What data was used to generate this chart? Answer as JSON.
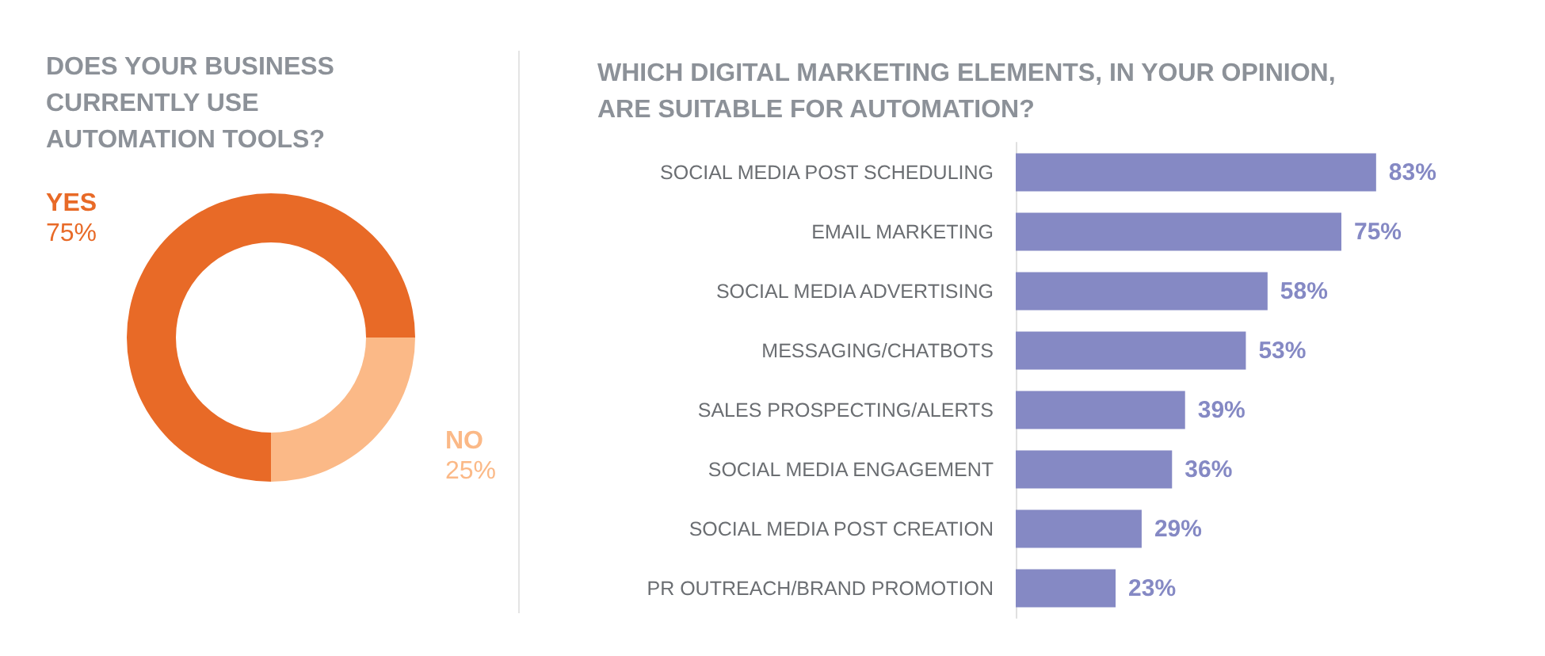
{
  "chart_data": [
    {
      "type": "donut",
      "title": "DOES YOUR BUSINESS\nCURRENTLY USE\nAUTOMATION TOOLS?",
      "categories": [
        "YES",
        "NO"
      ],
      "values": [
        75,
        25
      ],
      "colors": [
        "#e86a27",
        "#fbb987"
      ],
      "value_labels": [
        "75%",
        "25%"
      ],
      "legend": false
    },
    {
      "type": "bar",
      "orientation": "horizontal",
      "title": "WHICH DIGITAL MARKETING ELEMENTS, IN YOUR OPINION,\nARE SUITABLE FOR AUTOMATION?",
      "categories": [
        "SOCIAL MEDIA POST SCHEDULING",
        "EMAIL MARKETING",
        "SOCIAL MEDIA ADVERTISING",
        "MESSAGING/CHATBOTS",
        "SALES PROSPECTING/ALERTS",
        "SOCIAL MEDIA ENGAGEMENT",
        "SOCIAL MEDIA POST CREATION",
        "PR OUTREACH/BRAND PROMOTION"
      ],
      "values": [
        83,
        75,
        58,
        53,
        39,
        36,
        29,
        23
      ],
      "color": "#8589c4",
      "value_labels": [
        "83%",
        "75%",
        "58%",
        "53%",
        "39%",
        "36%",
        "29%",
        "23%"
      ],
      "legend": false
    }
  ]
}
